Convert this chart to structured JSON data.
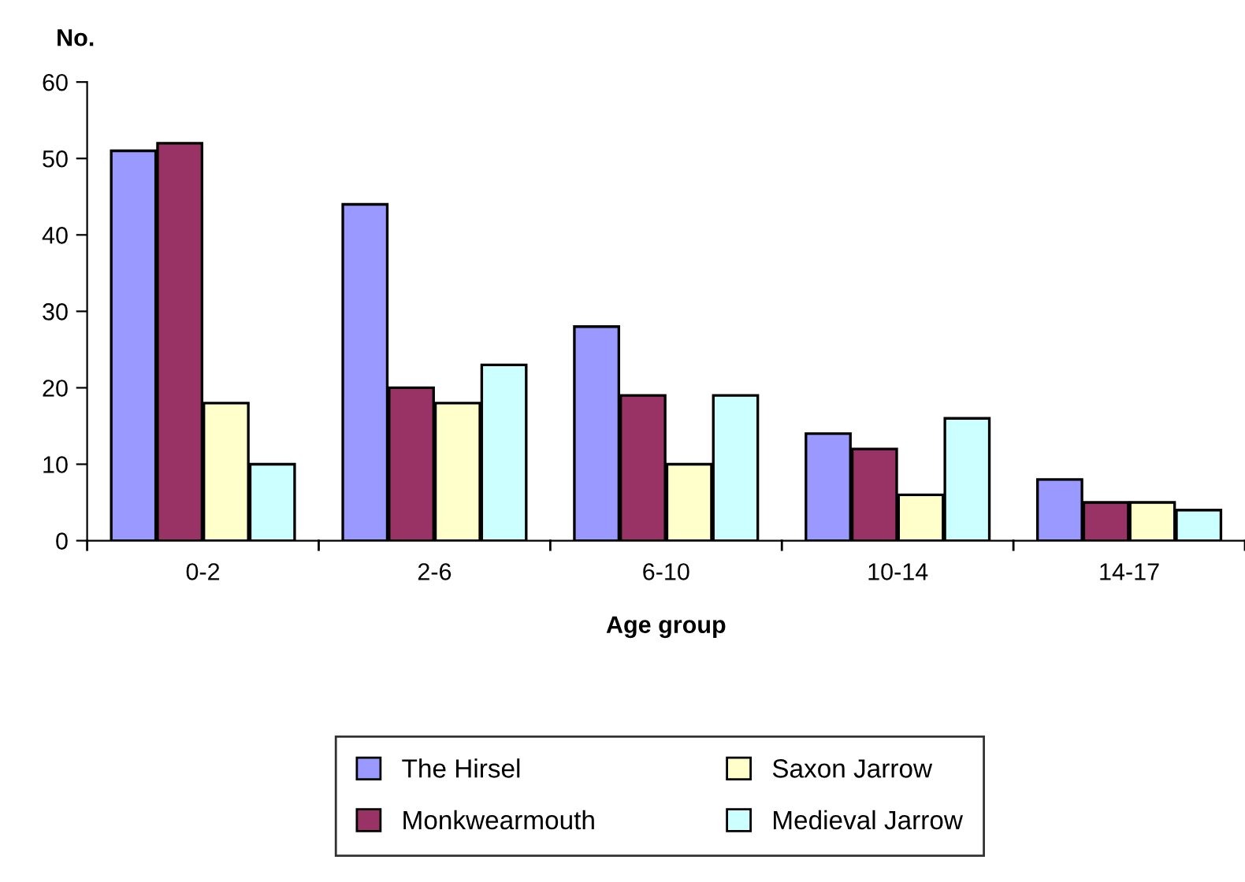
{
  "chart_data": {
    "type": "bar",
    "xlabel": "Age group",
    "ylabel": "No.",
    "categories": [
      "0-2",
      "2-6",
      "6-10",
      "10-14",
      "14-17"
    ],
    "series": [
      {
        "name": "The Hirsel",
        "color": "#9999ff",
        "values": [
          51,
          44,
          28,
          14,
          8
        ]
      },
      {
        "name": "Monkwearmouth",
        "color": "#993366",
        "values": [
          52,
          20,
          19,
          12,
          5
        ]
      },
      {
        "name": "Saxon Jarrow",
        "color": "#ffffcc",
        "values": [
          18,
          18,
          10,
          6,
          5
        ]
      },
      {
        "name": "Medieval Jarrow",
        "color": "#ccffff",
        "values": [
          10,
          23,
          19,
          16,
          4
        ]
      }
    ],
    "ylim": [
      0,
      60
    ],
    "yticks": [
      0,
      10,
      20,
      30,
      40,
      50,
      60
    ],
    "grid": false,
    "legend": "bottom"
  }
}
